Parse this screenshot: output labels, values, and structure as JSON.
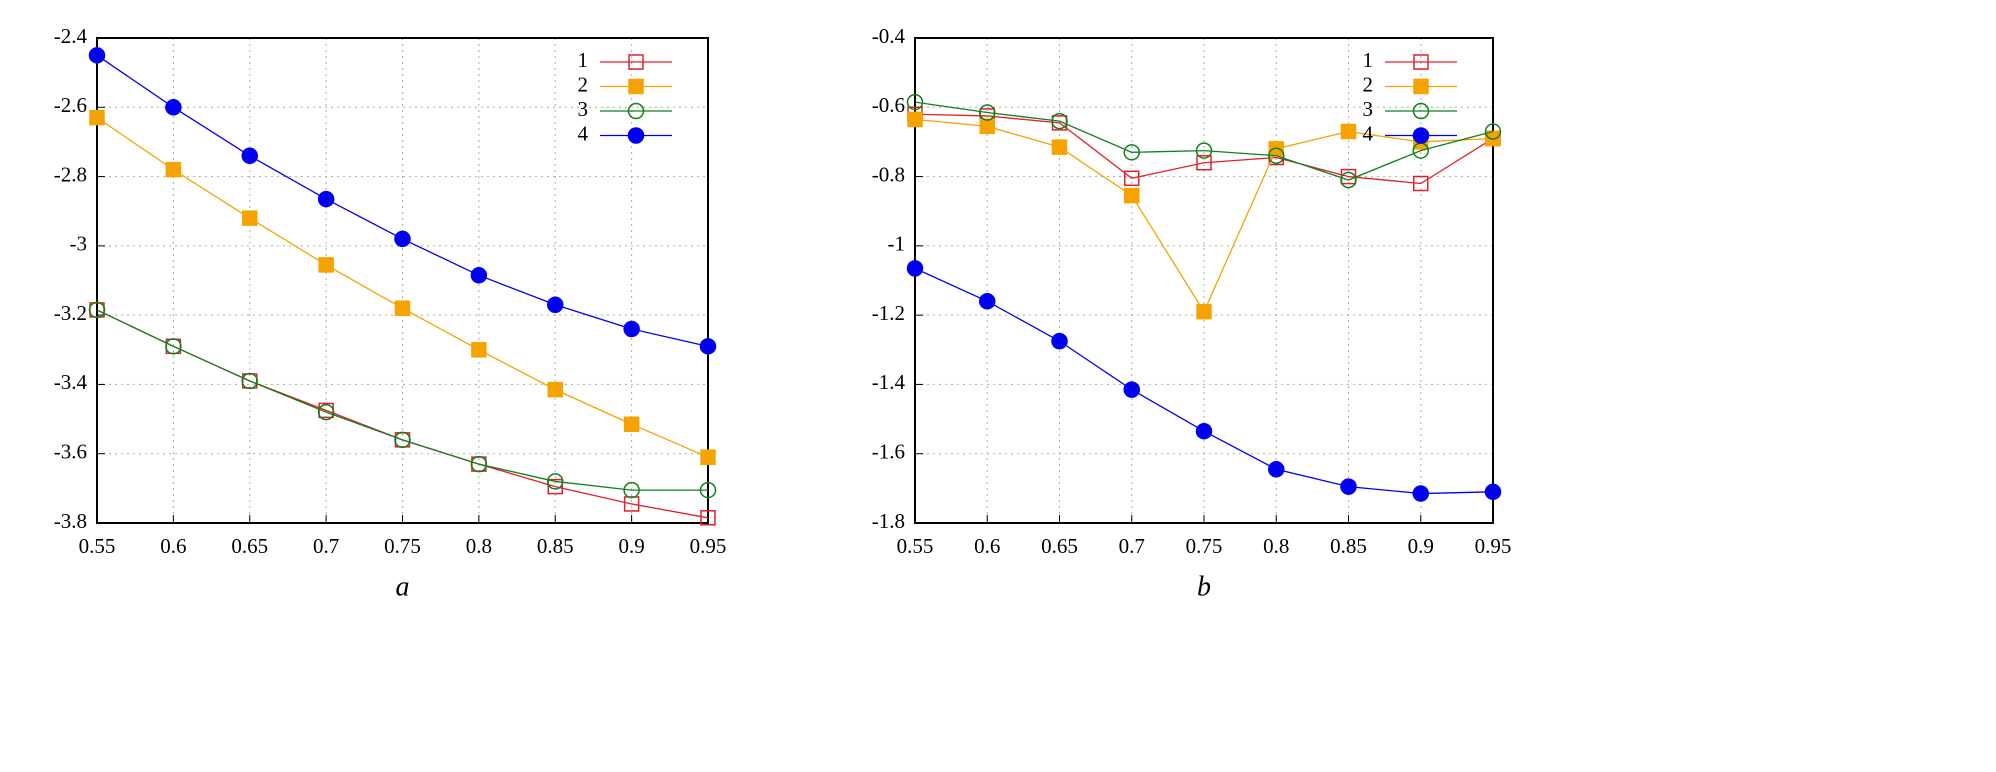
{
  "chart_data": [
    {
      "type": "line",
      "xlabel": "a",
      "x": [
        0.55,
        0.6,
        0.65,
        0.7,
        0.75,
        0.8,
        0.85,
        0.9,
        0.95
      ],
      "xlim": [
        0.55,
        0.95
      ],
      "xticks": [
        0.55,
        0.6,
        0.65,
        0.7,
        0.75,
        0.8,
        0.85,
        0.9,
        0.95
      ],
      "ylim": [
        -3.8,
        -2.4
      ],
      "yticks": [
        -3.8,
        -3.6,
        -3.4,
        -3.2,
        -3,
        -2.8,
        -2.6,
        -2.4
      ],
      "grid": true,
      "legend": "top-right",
      "series": [
        {
          "name": "1",
          "color": "#e0202a",
          "marker": "square-open",
          "values": [
            -3.185,
            -3.29,
            -3.39,
            -3.475,
            -3.56,
            -3.63,
            -3.695,
            -3.745,
            -3.785
          ]
        },
        {
          "name": "2",
          "color": "#f5a300",
          "marker": "square",
          "values": [
            -2.63,
            -2.78,
            -2.92,
            -3.055,
            -3.18,
            -3.3,
            -3.415,
            -3.515,
            -3.61
          ]
        },
        {
          "name": "3",
          "color": "#12801e",
          "marker": "circle-open",
          "values": [
            -3.185,
            -3.29,
            -3.39,
            -3.48,
            -3.56,
            -3.63,
            -3.68,
            -3.705,
            -3.705
          ]
        },
        {
          "name": "4",
          "color": "#0000ee",
          "marker": "circle",
          "values": [
            -2.45,
            -2.6,
            -2.74,
            -2.865,
            -2.98,
            -3.085,
            -3.17,
            -3.24,
            -3.29
          ]
        }
      ]
    },
    {
      "type": "line",
      "xlabel": "b",
      "x": [
        0.55,
        0.6,
        0.65,
        0.7,
        0.75,
        0.8,
        0.85,
        0.9,
        0.95
      ],
      "xlim": [
        0.55,
        0.95
      ],
      "xticks": [
        0.55,
        0.6,
        0.65,
        0.7,
        0.75,
        0.8,
        0.85,
        0.9,
        0.95
      ],
      "ylim": [
        -1.8,
        -0.4
      ],
      "yticks": [
        -1.8,
        -1.6,
        -1.4,
        -1.2,
        -1,
        -0.8,
        -0.6,
        -0.4
      ],
      "grid": true,
      "legend": "top-right",
      "series": [
        {
          "name": "1",
          "color": "#e0202a",
          "marker": "square-open",
          "values": [
            -0.62,
            -0.625,
            -0.645,
            -0.805,
            -0.76,
            -0.745,
            -0.8,
            -0.82,
            -0.69
          ]
        },
        {
          "name": "2",
          "color": "#f5a300",
          "marker": "square",
          "values": [
            -0.635,
            -0.655,
            -0.715,
            -0.855,
            -1.19,
            -0.72,
            -0.67,
            -0.7,
            -0.69
          ]
        },
        {
          "name": "3",
          "color": "#12801e",
          "marker": "circle-open",
          "values": [
            -0.585,
            -0.615,
            -0.64,
            -0.73,
            -0.725,
            -0.74,
            -0.81,
            -0.725,
            -0.67
          ]
        },
        {
          "name": "4",
          "color": "#0000ee",
          "marker": "circle",
          "values": [
            -1.065,
            -1.16,
            -1.275,
            -1.415,
            -1.535,
            -1.645,
            -1.695,
            -1.715,
            -1.71
          ]
        }
      ]
    }
  ]
}
